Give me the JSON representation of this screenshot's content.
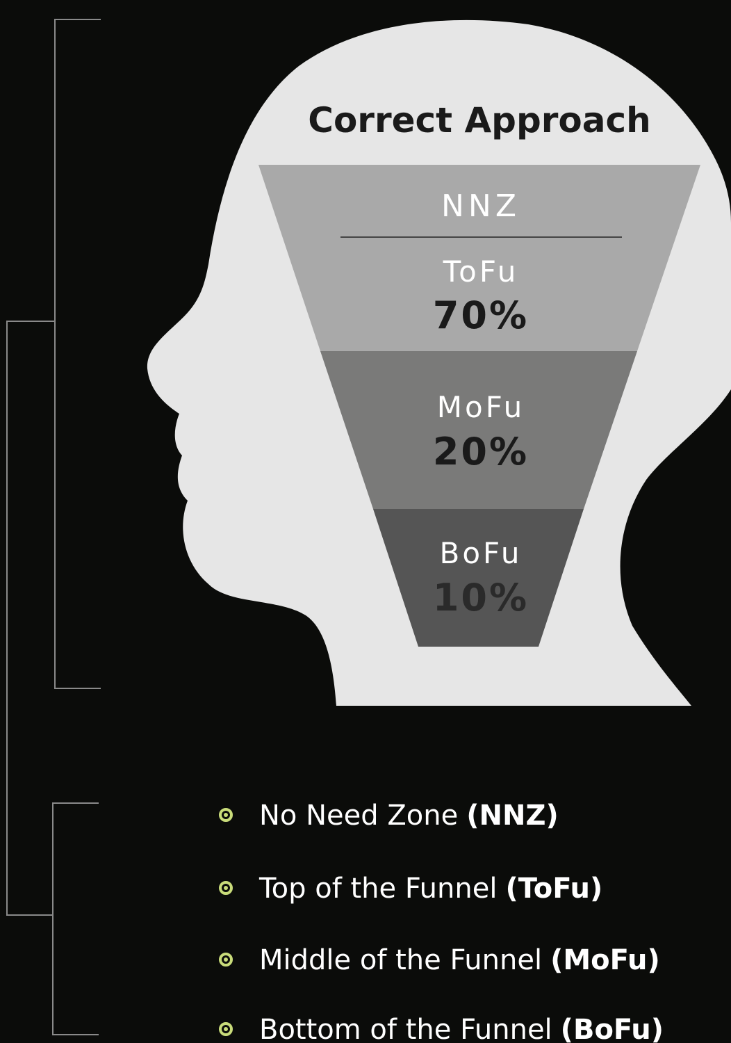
{
  "title": "Correct Approach",
  "funnel": {
    "top": "NNZ",
    "stages": [
      {
        "label": "ToFu",
        "value": "70%"
      },
      {
        "label": "MoFu",
        "value": "20%"
      },
      {
        "label": "BoFu",
        "value": "10%"
      }
    ]
  },
  "legend": [
    {
      "text": "No Need Zone",
      "abbr": "(NNZ)"
    },
    {
      "text": "Top of the Funnel",
      "abbr": "(ToFu)"
    },
    {
      "text": "Middle of the Funnel",
      "abbr": "(MoFu)"
    },
    {
      "text": "Bottom of the Funnel",
      "abbr": "(BoFu)"
    }
  ]
}
